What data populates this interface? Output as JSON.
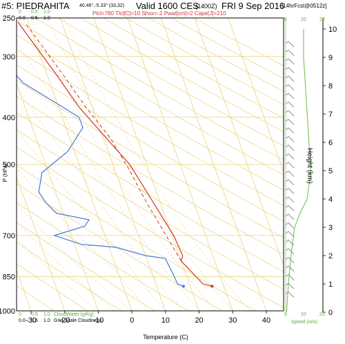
{
  "header": {
    "station": "#5: PIEDRAHITA",
    "coords": "40.46°,-5.33° (33,32)",
    "valid": "Valid 1600 CES",
    "zulu": "(1400Z)",
    "date": "FRI 9 Sep 2016",
    "forecast": "[14hrFcst@0512z]",
    "indices": "Plcl=780 Tlcl[C]=10 Shox=-2 Pwat[cm]=2 Cape[J]=210"
  },
  "top_scale": {
    "left": [
      "0",
      "0.5",
      "1.0"
    ],
    "left2": [
      "0.0",
      "0.5",
      "1.0"
    ],
    "right": [
      "0",
      "10",
      "20"
    ]
  },
  "bottom_scale": {
    "row1_ticks": [
      "0",
      "0.5",
      "1.0"
    ],
    "row1_label": "CloudWater (g/Kg)",
    "row2_ticks": [
      "0.0",
      "0.5",
      "1.0"
    ],
    "row2_label": "Grid-Scale Cloudiness",
    "speed_ticks": [
      "0",
      "10",
      "20"
    ],
    "speed_label": "Speed (m/s)"
  },
  "colors": {
    "temp": "#cc3322",
    "dewpoint": "#4477dd",
    "isotherm": "#e8d27a",
    "adiabat": "#e8d27a",
    "speed": "#66bb44",
    "wind_barb": "#888888"
  },
  "chart_data": {
    "type": "line",
    "title": "",
    "xlabel": "Temperature (C)",
    "ylabel": "P (hPa)",
    "y2label": "Height (km)",
    "x_ticks": [
      -30,
      -20,
      -10,
      0,
      10,
      20,
      30,
      40
    ],
    "xlim": [
      -30,
      45
    ],
    "p_ticks": [
      250,
      300,
      400,
      500,
      700,
      850,
      1000
    ],
    "ylim": [
      1000,
      250
    ],
    "y_scale": "log-pressure",
    "height_ticks": [
      0,
      1,
      2,
      3,
      4,
      5,
      6,
      7,
      8,
      9,
      10
    ],
    "series": [
      {
        "key": "temp",
        "points": [
          [
            26.5,
            890
          ],
          [
            24,
            880
          ],
          [
            20,
            790
          ],
          [
            21,
            770
          ],
          [
            20.5,
            700
          ],
          [
            18,
            600
          ],
          [
            15,
            500
          ],
          [
            10,
            430
          ],
          [
            6,
            380
          ],
          [
            3,
            330
          ],
          [
            0,
            290
          ],
          [
            -3,
            255
          ]
        ]
      },
      {
        "key": "parcel",
        "points": [
          [
            20,
            790
          ],
          [
            16,
            600
          ],
          [
            14,
            500
          ],
          [
            12,
            440
          ],
          [
            8,
            380
          ],
          [
            5,
            330
          ],
          [
            2,
            290
          ],
          [
            -1,
            255
          ]
        ]
      },
      {
        "key": "dewpoint",
        "points": [
          [
            18,
            890
          ],
          [
            16.5,
            880
          ],
          [
            16,
            820
          ],
          [
            15.5,
            780
          ],
          [
            10,
            770
          ],
          [
            2,
            740
          ],
          [
            -8,
            730
          ],
          [
            -15,
            700
          ],
          [
            -5,
            670
          ],
          [
            -3,
            650
          ],
          [
            -12,
            630
          ],
          [
            -14,
            600
          ],
          [
            -15,
            570
          ],
          [
            -12,
            520
          ],
          [
            -2,
            470
          ],
          [
            5,
            420
          ],
          [
            5,
            400
          ],
          [
            1,
            380
          ],
          [
            -8,
            340
          ],
          [
            -12,
            300
          ],
          [
            -15,
            255
          ]
        ]
      }
    ],
    "speed_profile": [
      [
        0.5,
        0
      ],
      [
        1.5,
        1
      ],
      [
        3,
        2
      ],
      [
        5,
        3
      ],
      [
        8,
        3.5
      ],
      [
        12,
        4
      ],
      [
        14,
        5
      ],
      [
        13,
        6
      ],
      [
        12,
        7
      ],
      [
        11,
        8
      ],
      [
        10,
        9
      ],
      [
        10,
        10
      ]
    ]
  }
}
